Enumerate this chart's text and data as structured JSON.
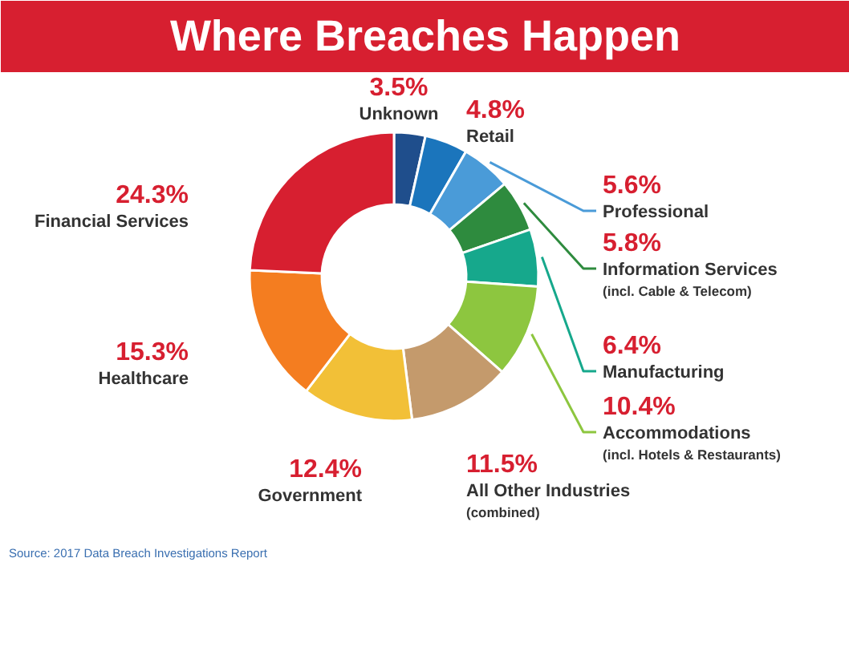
{
  "chart_data": {
    "type": "donut",
    "title": "Where Breaches Happen",
    "categories": [
      "Unknown",
      "Retail",
      "Professional",
      "Information Services (incl. Cable & Telecom)",
      "Manufacturing",
      "Accommodations (incl. Hotels & Restaurants)",
      "All Other Industries (combined)",
      "Government",
      "Healthcare",
      "Financial Services"
    ],
    "values": [
      3.5,
      4.8,
      5.6,
      5.8,
      6.4,
      10.4,
      11.5,
      12.4,
      15.3,
      24.3
    ],
    "value_labels": [
      "3.5%",
      "4.8%",
      "5.6%",
      "5.8%",
      "6.4%",
      "10.4%",
      "11.5%",
      "12.4%",
      "15.3%",
      "24.3%"
    ],
    "colors": [
      "#1f4e8c",
      "#1b75bc",
      "#4a9bd8",
      "#2e8b3e",
      "#16a88c",
      "#8dc63f",
      "#c49a6c",
      "#f2c037",
      "#f47d20",
      "#d71f30"
    ],
    "annotations": [
      "Source: 2017 Data Breach Investigations Report"
    ]
  }
}
